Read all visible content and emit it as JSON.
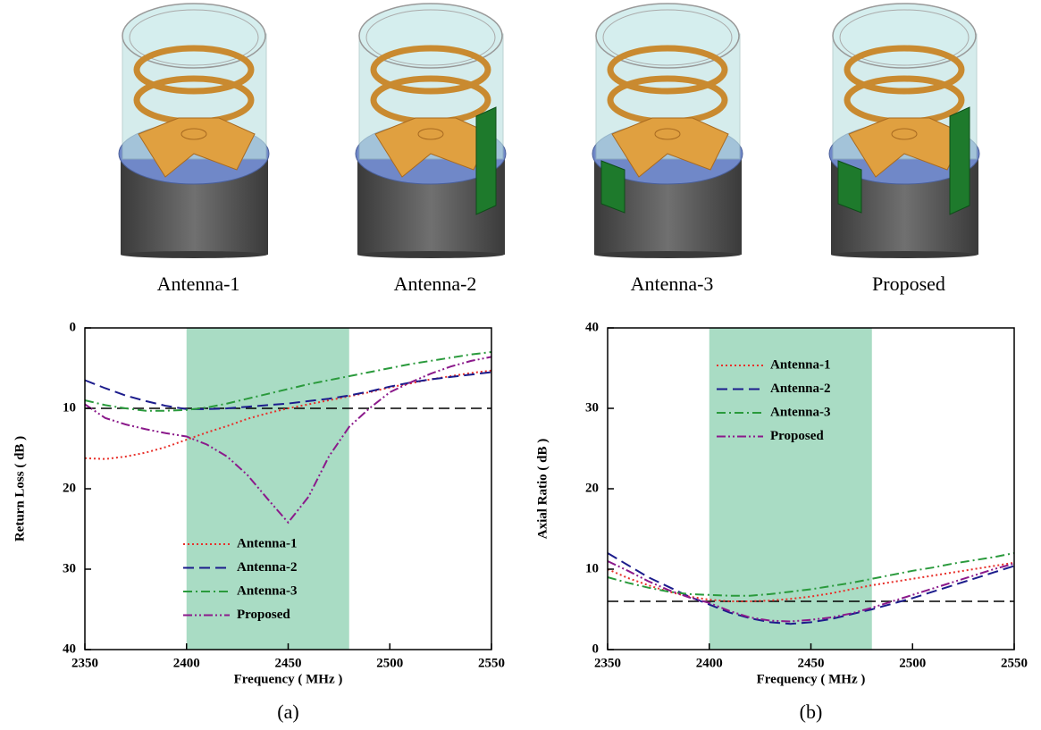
{
  "antenna_images": {
    "captions": [
      "Antenna-1",
      "Antenna-2",
      "Antenna-3",
      "Proposed"
    ]
  },
  "chart_data": [
    {
      "type": "line",
      "caption": "(a)",
      "x_label": "Frequency ( MHz )",
      "y_label": "Return Loss ( dB )",
      "x": [
        2350,
        2360,
        2370,
        2380,
        2390,
        2400,
        2410,
        2420,
        2430,
        2440,
        2450,
        2460,
        2470,
        2480,
        2490,
        2500,
        2510,
        2520,
        2530,
        2540,
        2550
      ],
      "xlim": [
        2350,
        2550
      ],
      "xticks": [
        2350,
        2400,
        2450,
        2500,
        2550
      ],
      "ylim": [
        0,
        40
      ],
      "yticks": [
        0,
        10,
        20,
        30,
        40
      ],
      "y_inverted": true,
      "shade": [
        2400,
        2480
      ],
      "shade_color": "#a9dcc4",
      "hline": 10,
      "legend_position": "bottom-center",
      "series": [
        {
          "name": "Antenna-1",
          "color": "#e8302a",
          "dash": "dotted",
          "values": [
            16.2,
            16.3,
            16,
            15.5,
            14.8,
            13.9,
            13,
            12.2,
            11.3,
            10.6,
            10,
            9.5,
            9,
            8.5,
            8,
            7.4,
            6.9,
            6.4,
            6,
            5.6,
            5.3
          ]
        },
        {
          "name": "Antenna-2",
          "color": "#1c1c8c",
          "dash": "dashed",
          "values": [
            6.5,
            7.5,
            8.4,
            9.1,
            9.7,
            10.1,
            10.1,
            10,
            9.8,
            9.6,
            9.4,
            9.1,
            8.8,
            8.4,
            7.9,
            7.3,
            6.8,
            6.4,
            6.1,
            5.8,
            5.5
          ]
        },
        {
          "name": "Antenna-3",
          "color": "#2a9a3c",
          "dash": "dashdot",
          "values": [
            9,
            9.6,
            10,
            10.3,
            10.3,
            10.2,
            9.9,
            9.4,
            8.8,
            8.2,
            7.6,
            7,
            6.5,
            6,
            5.5,
            5,
            4.5,
            4.1,
            3.7,
            3.3,
            3
          ]
        },
        {
          "name": "Proposed",
          "color": "#8b1a8b",
          "dash": "dashdotdot",
          "values": [
            9.5,
            11.2,
            12,
            12.6,
            13.1,
            13.5,
            14.5,
            16,
            18.3,
            21.3,
            24.2,
            21,
            16,
            12.3,
            10,
            8,
            6.8,
            5.7,
            4.8,
            4.1,
            3.6
          ]
        }
      ]
    },
    {
      "type": "line",
      "caption": "(b)",
      "x_label": "Frequency ( MHz )",
      "y_label": "Axial Ratio ( dB )",
      "x": [
        2350,
        2360,
        2370,
        2380,
        2390,
        2400,
        2410,
        2420,
        2430,
        2440,
        2450,
        2460,
        2470,
        2480,
        2490,
        2500,
        2510,
        2520,
        2530,
        2540,
        2550
      ],
      "xlim": [
        2350,
        2550
      ],
      "xticks": [
        2350,
        2400,
        2450,
        2500,
        2550
      ],
      "ylim": [
        0,
        40
      ],
      "yticks": [
        0,
        10,
        20,
        30,
        40
      ],
      "y_inverted": false,
      "shade": [
        2400,
        2480
      ],
      "shade_color": "#a9dcc4",
      "hline": 6,
      "legend_position": "top-left",
      "series": [
        {
          "name": "Antenna-1",
          "color": "#e8302a",
          "dash": "dotted",
          "values": [
            10,
            8.9,
            8,
            7.2,
            6.6,
            6.2,
            6,
            6,
            6.1,
            6.3,
            6.6,
            7,
            7.5,
            8,
            8.4,
            8.8,
            9.2,
            9.6,
            10,
            10.4,
            10.8
          ]
        },
        {
          "name": "Antenna-2",
          "color": "#1c1c8c",
          "dash": "dashed",
          "values": [
            12,
            10.5,
            9,
            7.8,
            6.6,
            5.6,
            4.6,
            3.9,
            3.4,
            3.2,
            3.4,
            3.8,
            4.4,
            5,
            5.7,
            6.4,
            7.2,
            8,
            8.8,
            9.6,
            10.4
          ]
        },
        {
          "name": "Antenna-3",
          "color": "#2a9a3c",
          "dash": "dashdot",
          "values": [
            9,
            8.3,
            7.7,
            7.2,
            6.9,
            6.8,
            6.7,
            6.7,
            6.9,
            7.2,
            7.5,
            7.9,
            8.3,
            8.8,
            9.3,
            9.8,
            10.2,
            10.7,
            11.1,
            11.5,
            12
          ]
        },
        {
          "name": "Proposed",
          "color": "#8b1a8b",
          "dash": "dashdotdot",
          "values": [
            11,
            9.8,
            8.5,
            7.4,
            6.5,
            5.8,
            4.8,
            4,
            3.6,
            3.5,
            3.7,
            4,
            4.5,
            5.2,
            6,
            6.8,
            7.6,
            8.4,
            9.2,
            10,
            10.7
          ]
        }
      ]
    }
  ]
}
